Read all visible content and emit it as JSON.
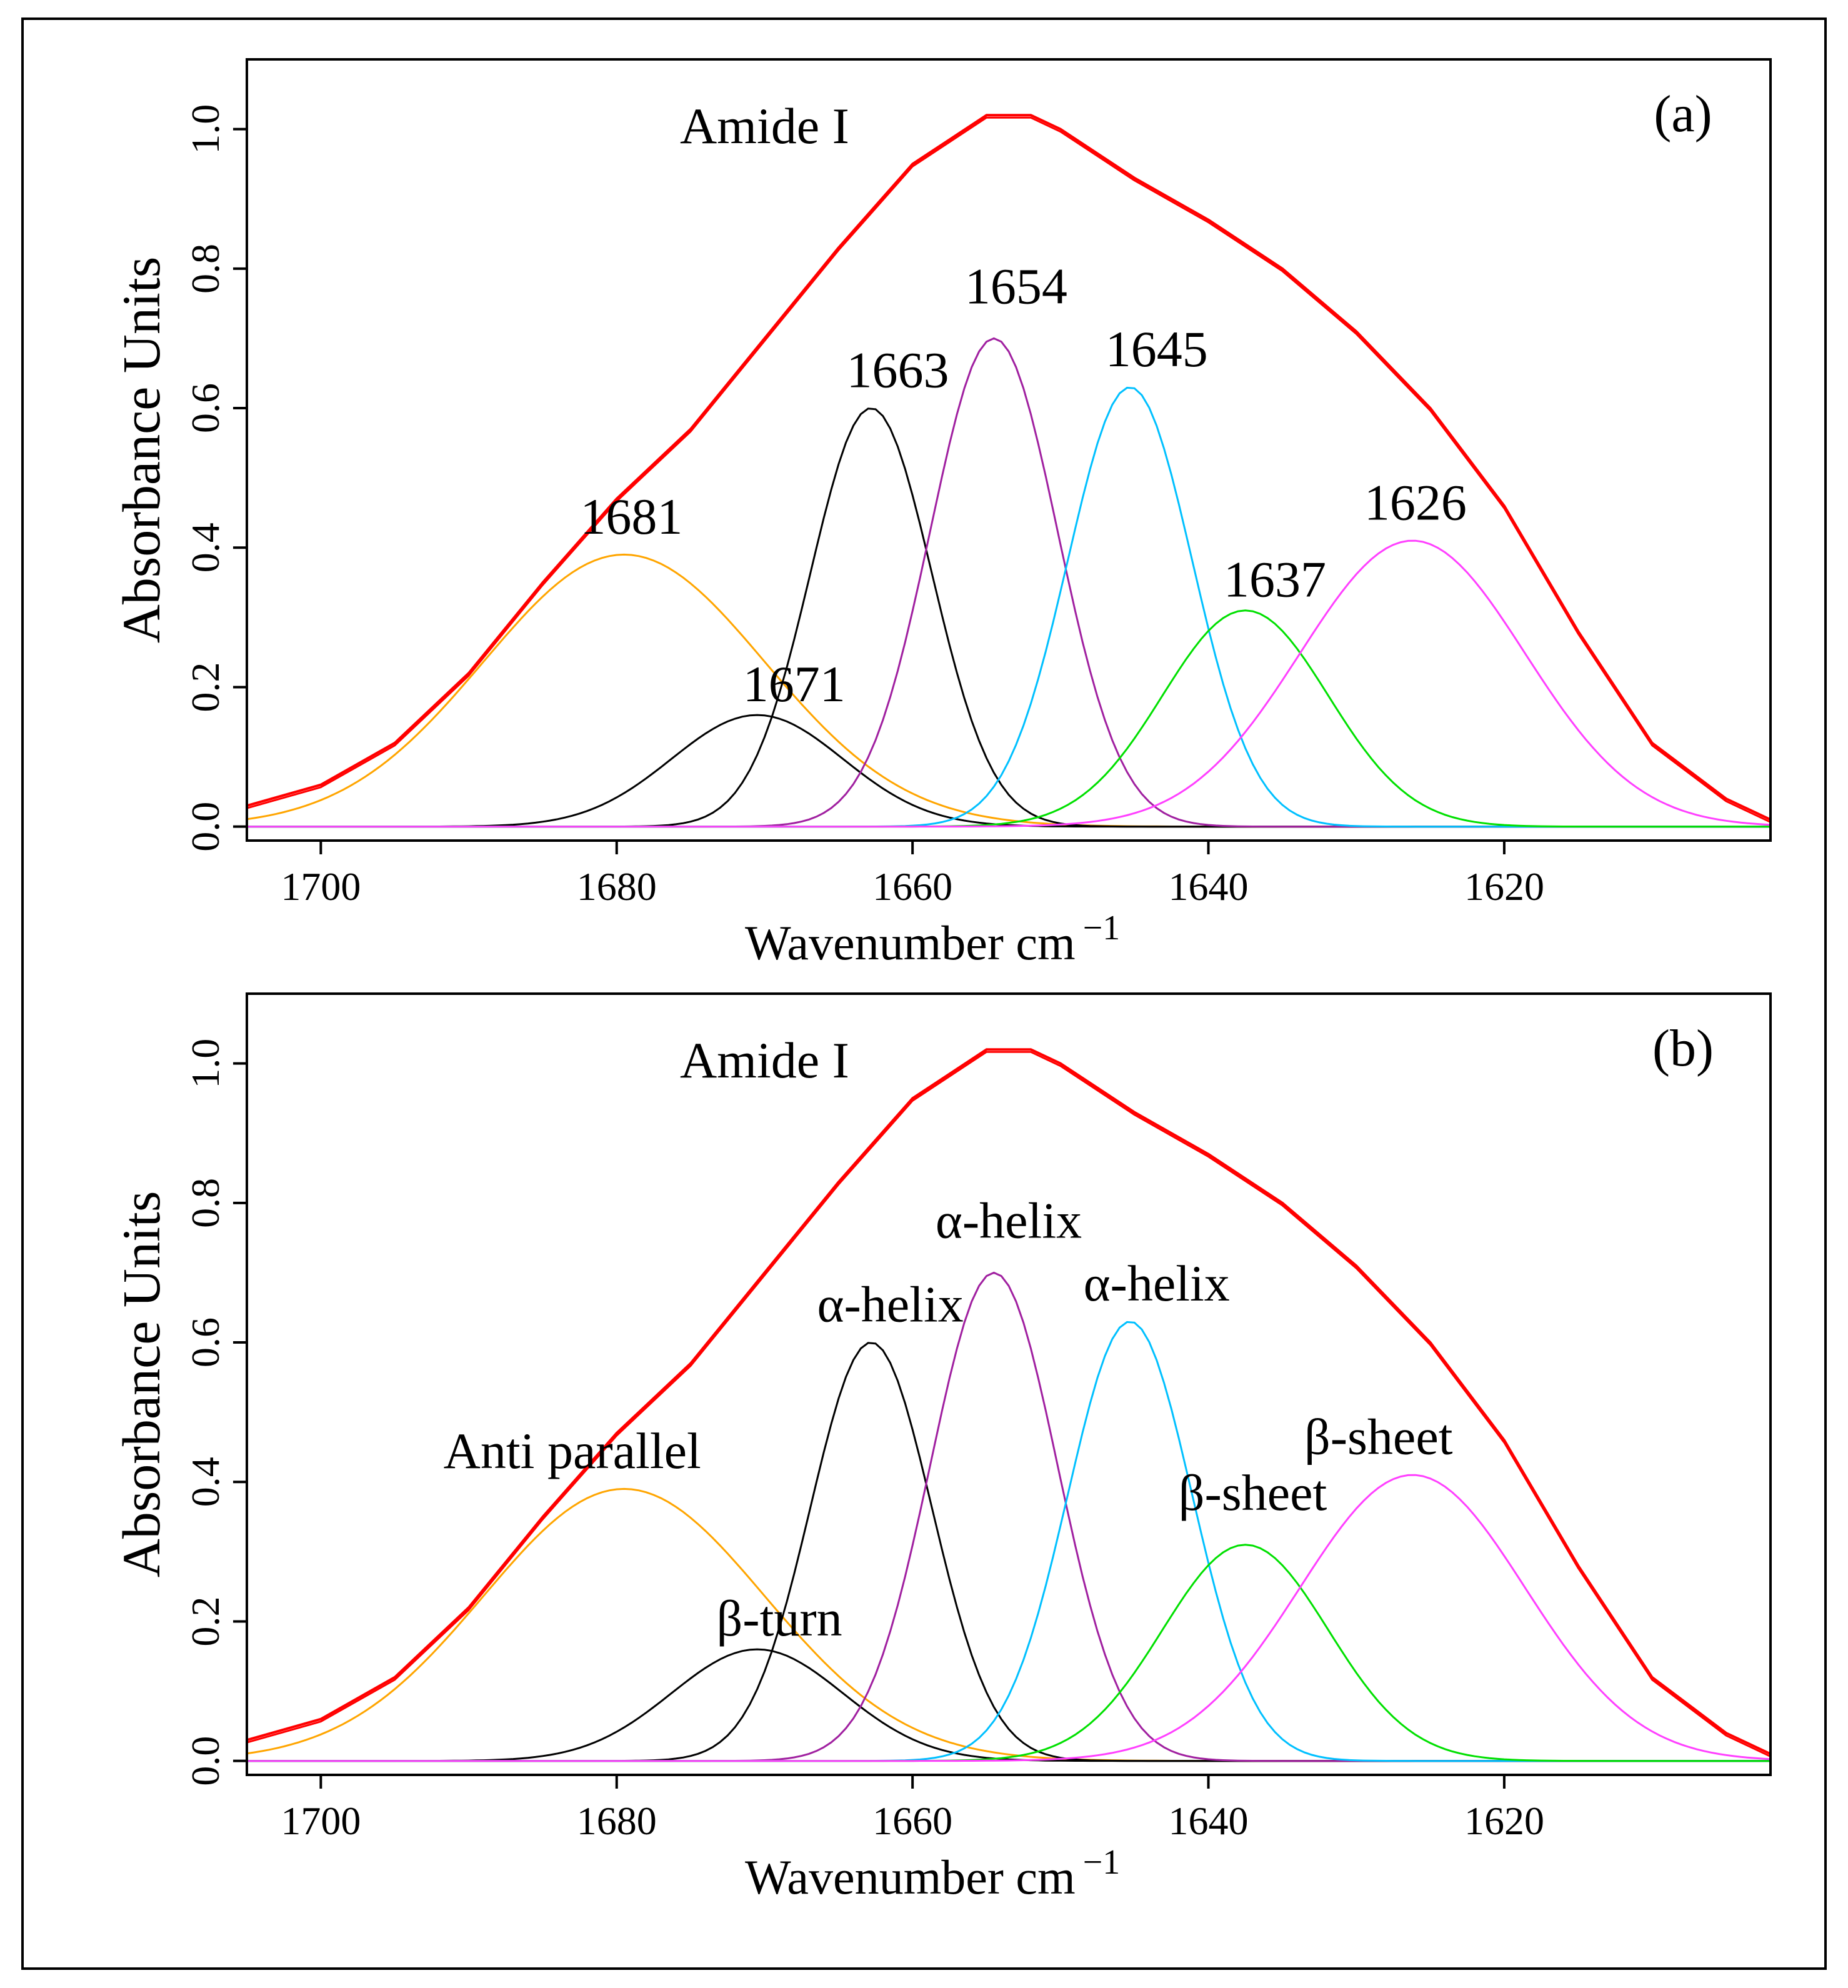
{
  "chart_data": [
    {
      "panel": "(a)",
      "type": "line",
      "title": "",
      "panel_label": "(a)",
      "xlabel": "Wavenumber cm",
      "xlabel_sup": "−1",
      "ylabel": "Absorbance Units",
      "x_reversed": true,
      "xlim": [
        1705,
        1602
      ],
      "ylim": [
        -0.02,
        1.1
      ],
      "xticks": [
        1700,
        1680,
        1660,
        1640,
        1620
      ],
      "xtick_labels": [
        "1700",
        "1680",
        "1660",
        "1640",
        "1620"
      ],
      "yticks": [
        0.0,
        0.2,
        0.4,
        0.6,
        0.8,
        1.0
      ],
      "ytick_labels": [
        "0.0",
        "0.2",
        "0.4",
        "0.6",
        "0.8",
        "1.0"
      ],
      "grid": false,
      "envelope": {
        "name": "Amide I",
        "color": "#ff0000",
        "x": [
          1705,
          1700,
          1695,
          1690,
          1685,
          1680,
          1675,
          1670,
          1665,
          1660,
          1655,
          1652,
          1650,
          1645,
          1640,
          1635,
          1630,
          1625,
          1620,
          1615,
          1610,
          1605,
          1602
        ],
        "y": [
          0.03,
          0.06,
          0.12,
          0.22,
          0.35,
          0.47,
          0.57,
          0.7,
          0.83,
          0.95,
          1.02,
          1.02,
          1.0,
          0.93,
          0.87,
          0.8,
          0.71,
          0.6,
          0.46,
          0.28,
          0.12,
          0.04,
          0.01
        ]
      },
      "components": [
        {
          "name": "1681",
          "color": "#ffa500",
          "center": 1679.5,
          "height": 0.39,
          "sigma": 9.5
        },
        {
          "name": "1671",
          "color": "#000000",
          "center": 1670.5,
          "height": 0.16,
          "sigma": 5.8
        },
        {
          "name": "1663",
          "color": "#000000",
          "center": 1662.8,
          "height": 0.6,
          "sigma": 4.1
        },
        {
          "name": "1654",
          "color": "#a020a0",
          "center": 1654.5,
          "height": 0.7,
          "sigma": 4.3
        },
        {
          "name": "1645",
          "color": "#00c0ff",
          "center": 1645.3,
          "height": 0.63,
          "sigma": 4.2
        },
        {
          "name": "1637",
          "color": "#00e000",
          "center": 1637.5,
          "height": 0.31,
          "sigma": 5.6
        },
        {
          "name": "1626",
          "color": "#ff40ff",
          "center": 1626.2,
          "height": 0.41,
          "sigma": 7.6
        }
      ],
      "annotations": [
        {
          "text": "Amide I",
          "x": 1670,
          "y": 0.98
        },
        {
          "text": "1681",
          "x": 1679,
          "y": 0.42
        },
        {
          "text": "1671",
          "x": 1668,
          "y": 0.18
        },
        {
          "text": "1663",
          "x": 1661,
          "y": 0.63
        },
        {
          "text": "1654",
          "x": 1653,
          "y": 0.75
        },
        {
          "text": "1645",
          "x": 1643.5,
          "y": 0.66
        },
        {
          "text": "1637",
          "x": 1635.5,
          "y": 0.33
        },
        {
          "text": "1626",
          "x": 1626,
          "y": 0.44
        }
      ]
    },
    {
      "panel": "(b)",
      "type": "line",
      "title": "",
      "panel_label": "(b)",
      "xlabel": "Wavenumber cm",
      "xlabel_sup": "−1",
      "ylabel": "Absorbance Units",
      "x_reversed": true,
      "xlim": [
        1705,
        1602
      ],
      "ylim": [
        -0.02,
        1.1
      ],
      "xticks": [
        1700,
        1680,
        1660,
        1640,
        1620
      ],
      "xtick_labels": [
        "1700",
        "1680",
        "1660",
        "1640",
        "1620"
      ],
      "yticks": [
        0.0,
        0.2,
        0.4,
        0.6,
        0.8,
        1.0
      ],
      "ytick_labels": [
        "0.0",
        "0.2",
        "0.4",
        "0.6",
        "0.8",
        "1.0"
      ],
      "grid": false,
      "envelope": {
        "name": "Amide I",
        "color": "#ff0000",
        "x": [
          1705,
          1700,
          1695,
          1690,
          1685,
          1680,
          1675,
          1670,
          1665,
          1660,
          1655,
          1652,
          1650,
          1645,
          1640,
          1635,
          1630,
          1625,
          1620,
          1615,
          1610,
          1605,
          1602
        ],
        "y": [
          0.03,
          0.06,
          0.12,
          0.22,
          0.35,
          0.47,
          0.57,
          0.7,
          0.83,
          0.95,
          1.02,
          1.02,
          1.0,
          0.93,
          0.87,
          0.8,
          0.71,
          0.6,
          0.46,
          0.28,
          0.12,
          0.04,
          0.01
        ]
      },
      "components": [
        {
          "name": "Anti parallel",
          "color": "#ffa500",
          "center": 1679.5,
          "height": 0.39,
          "sigma": 9.5
        },
        {
          "name": "β-turn",
          "color": "#000000",
          "center": 1670.5,
          "height": 0.16,
          "sigma": 5.8
        },
        {
          "name": "α-helix",
          "color": "#000000",
          "center": 1662.8,
          "height": 0.6,
          "sigma": 4.1
        },
        {
          "name": "α-helix",
          "color": "#a020a0",
          "center": 1654.5,
          "height": 0.7,
          "sigma": 4.3
        },
        {
          "name": "α-helix",
          "color": "#00c0ff",
          "center": 1645.3,
          "height": 0.63,
          "sigma": 4.2
        },
        {
          "name": "β-sheet",
          "color": "#00e000",
          "center": 1637.5,
          "height": 0.31,
          "sigma": 5.6
        },
        {
          "name": "β-sheet",
          "color": "#ff40ff",
          "center": 1626.2,
          "height": 0.41,
          "sigma": 7.6
        }
      ],
      "annotations": [
        {
          "text": "Amide I",
          "x": 1670,
          "y": 0.98
        },
        {
          "text": "Anti parallel",
          "x": 1683,
          "y": 0.42
        },
        {
          "text": "β-turn",
          "x": 1669,
          "y": 0.18
        },
        {
          "text": "α-helix",
          "x": 1661.5,
          "y": 0.63
        },
        {
          "text": "α-helix",
          "x": 1653.5,
          "y": 0.75
        },
        {
          "text": "α-helix",
          "x": 1643.5,
          "y": 0.66
        },
        {
          "text": "β-sheet",
          "x": 1637,
          "y": 0.36
        },
        {
          "text": "β-sheet",
          "x": 1628.5,
          "y": 0.44
        }
      ]
    }
  ]
}
